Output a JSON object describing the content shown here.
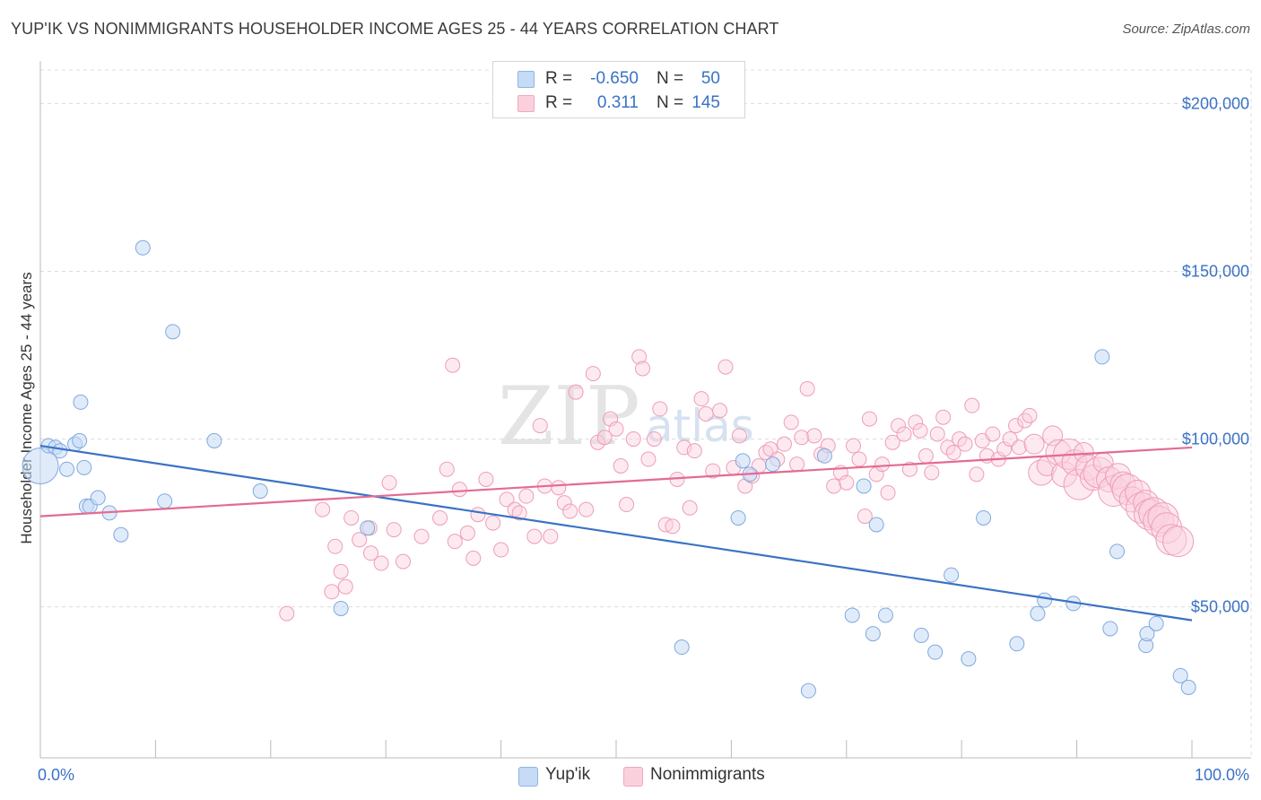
{
  "title": "YUP'IK VS NONIMMIGRANTS HOUSEHOLDER INCOME AGES 25 - 44 YEARS CORRELATION CHART",
  "source": "Source: ZipAtlas.com",
  "watermark": {
    "main": "ZIP",
    "sub": "atlas"
  },
  "legend_top": [
    {
      "r_label": "R =",
      "r_value": "-0.650",
      "n_label": "N =",
      "n_value": "50",
      "color": "#8fb4e3"
    },
    {
      "r_label": "R =",
      "r_value": "0.311",
      "n_label": "N =",
      "n_value": "145",
      "color": "#f2a7bd"
    }
  ],
  "legend_bottom": [
    {
      "label": "Yup'ik",
      "color": "#8fb4e3"
    },
    {
      "label": "Nonimmigrants",
      "color": "#f2a7bd"
    }
  ],
  "chart_data": {
    "type": "scatter",
    "title": "YUP'IK VS NONIMMIGRANTS HOUSEHOLDER INCOME AGES 25 - 44 YEARS CORRELATION CHART",
    "xlabel": "",
    "ylabel": "Householder Income Ages 25 - 44 years",
    "xlim": [
      0,
      100
    ],
    "ylim": [
      5000,
      210000
    ],
    "x_tick_labels": [
      "0.0%",
      "100.0%"
    ],
    "y_ticks": [
      50000,
      100000,
      150000,
      200000
    ],
    "y_tick_labels": [
      "$50,000",
      "$100,000",
      "$150,000",
      "$200,000"
    ],
    "grid": true,
    "legend_position": "top-center",
    "series": [
      {
        "name": "Yup'ik",
        "color": "#8fb4e3",
        "line_color": "#3a72c4",
        "trend": {
          "x": [
            0,
            100
          ],
          "y": [
            98000,
            46000
          ]
        },
        "points": [
          [
            0,
            92000,
            1
          ],
          [
            0.7,
            98000,
            0.4
          ],
          [
            1.3,
            97500,
            0.4
          ],
          [
            1.7,
            96500,
            0.4
          ],
          [
            2.3,
            91000,
            0.4
          ],
          [
            3.0,
            98500,
            0.4
          ],
          [
            3.4,
            99500,
            0.4
          ],
          [
            3.5,
            111000,
            0.4
          ],
          [
            3.8,
            91500,
            0.4
          ],
          [
            4.0,
            80000,
            0.4
          ],
          [
            4.3,
            80000,
            0.4
          ],
          [
            5.0,
            82500,
            0.4
          ],
          [
            6.0,
            78000,
            0.4
          ],
          [
            7.0,
            71500,
            0.4
          ],
          [
            8.9,
            157000,
            0.4
          ],
          [
            10.8,
            81500,
            0.4
          ],
          [
            11.5,
            132000,
            0.4
          ],
          [
            15.1,
            99500,
            0.4
          ],
          [
            19.1,
            84500,
            0.4
          ],
          [
            26.1,
            49500,
            0.4
          ],
          [
            28.4,
            73500,
            0.4
          ],
          [
            55.7,
            38000,
            0.4
          ],
          [
            60.6,
            76500,
            0.4
          ],
          [
            61.0,
            93500,
            0.4
          ],
          [
            61.6,
            89500,
            0.4
          ],
          [
            63.6,
            92500,
            0.4
          ],
          [
            66.7,
            25000,
            0.4
          ],
          [
            68.1,
            95000,
            0.4
          ],
          [
            70.5,
            47500,
            0.4
          ],
          [
            71.5,
            86000,
            0.4
          ],
          [
            72.3,
            42000,
            0.4
          ],
          [
            72.6,
            74500,
            0.4
          ],
          [
            73.4,
            47500,
            0.4
          ],
          [
            76.5,
            41500,
            0.4
          ],
          [
            77.7,
            36500,
            0.4
          ],
          [
            79.1,
            59500,
            0.4
          ],
          [
            80.6,
            34500,
            0.4
          ],
          [
            81.9,
            76500,
            0.4
          ],
          [
            84.8,
            39000,
            0.4
          ],
          [
            86.6,
            48000,
            0.4
          ],
          [
            87.2,
            52000,
            0.4
          ],
          [
            89.7,
            51000,
            0.4
          ],
          [
            92.2,
            124500,
            0.4
          ],
          [
            92.9,
            43500,
            0.4
          ],
          [
            93.5,
            66500,
            0.4
          ],
          [
            96.0,
            38500,
            0.4
          ],
          [
            96.1,
            42000,
            0.4
          ],
          [
            96.9,
            45000,
            0.4
          ],
          [
            99.0,
            29500,
            0.4
          ],
          [
            99.7,
            26000,
            0.4
          ]
        ]
      },
      {
        "name": "Nonimmigrants",
        "color": "#f2a7bd",
        "line_color": "#e36b93",
        "trend": {
          "x": [
            0,
            100
          ],
          "y": [
            77000,
            97500
          ]
        },
        "points": [
          [
            21.4,
            48000,
            0.4
          ],
          [
            24.5,
            79000,
            0.4
          ],
          [
            25.3,
            54500,
            0.4
          ],
          [
            25.6,
            68000,
            0.4
          ],
          [
            26.1,
            60500,
            0.4
          ],
          [
            26.5,
            56000,
            0.4
          ],
          [
            27.0,
            76500,
            0.4
          ],
          [
            27.7,
            70000,
            0.4
          ],
          [
            28.6,
            73500,
            0.4
          ],
          [
            28.7,
            66000,
            0.4
          ],
          [
            29.6,
            63000,
            0.4
          ],
          [
            30.3,
            87000,
            0.4
          ],
          [
            30.7,
            73000,
            0.4
          ],
          [
            31.5,
            63500,
            0.4
          ],
          [
            33.1,
            71000,
            0.4
          ],
          [
            34.7,
            76500,
            0.4
          ],
          [
            35.3,
            91000,
            0.4
          ],
          [
            35.8,
            122000,
            0.4
          ],
          [
            36.0,
            69500,
            0.4
          ],
          [
            36.4,
            85000,
            0.4
          ],
          [
            37.1,
            72000,
            0.4
          ],
          [
            37.6,
            64500,
            0.4
          ],
          [
            38.0,
            77500,
            0.4
          ],
          [
            38.7,
            88000,
            0.4
          ],
          [
            39.3,
            75000,
            0.4
          ],
          [
            40.0,
            67000,
            0.4
          ],
          [
            40.5,
            82000,
            0.4
          ],
          [
            41.2,
            79000,
            0.4
          ],
          [
            41.6,
            78000,
            0.4
          ],
          [
            42.2,
            83000,
            0.4
          ],
          [
            42.9,
            71000,
            0.4
          ],
          [
            43.4,
            104000,
            0.4
          ],
          [
            43.8,
            86000,
            0.4
          ],
          [
            44.3,
            71000,
            0.4
          ],
          [
            45.0,
            85500,
            0.4
          ],
          [
            45.5,
            81000,
            0.4
          ],
          [
            46.0,
            78500,
            0.4
          ],
          [
            46.5,
            114000,
            0.4
          ],
          [
            47.4,
            79000,
            0.4
          ],
          [
            48.0,
            119500,
            0.4
          ],
          [
            48.4,
            99000,
            0.4
          ],
          [
            49.0,
            100500,
            0.4
          ],
          [
            49.5,
            106000,
            0.4
          ],
          [
            50.0,
            103000,
            0.4
          ],
          [
            50.4,
            92000,
            0.4
          ],
          [
            50.9,
            80500,
            0.4
          ],
          [
            51.5,
            100000,
            0.4
          ],
          [
            52.0,
            124500,
            0.4
          ],
          [
            52.3,
            121000,
            0.4
          ],
          [
            52.8,
            94000,
            0.4
          ],
          [
            53.3,
            100000,
            0.4
          ],
          [
            53.8,
            109000,
            0.4
          ],
          [
            54.3,
            74500,
            0.4
          ],
          [
            54.9,
            74000,
            0.4
          ],
          [
            55.3,
            88000,
            0.4
          ],
          [
            55.9,
            97500,
            0.4
          ],
          [
            56.4,
            79500,
            0.4
          ],
          [
            56.8,
            96500,
            0.4
          ],
          [
            57.4,
            112000,
            0.4
          ],
          [
            57.8,
            107500,
            0.4
          ],
          [
            58.4,
            90500,
            0.4
          ],
          [
            59.0,
            108500,
            0.4
          ],
          [
            59.5,
            121500,
            0.4
          ],
          [
            60.2,
            91500,
            0.4
          ],
          [
            60.7,
            101000,
            0.4
          ],
          [
            61.2,
            86000,
            0.4
          ],
          [
            61.8,
            89000,
            0.4
          ],
          [
            62.4,
            92000,
            0.4
          ],
          [
            63.0,
            96000,
            0.4
          ],
          [
            63.4,
            97000,
            0.4
          ],
          [
            64.0,
            94000,
            0.4
          ],
          [
            64.6,
            98500,
            0.4
          ],
          [
            65.2,
            105000,
            0.4
          ],
          [
            65.7,
            92500,
            0.4
          ],
          [
            66.1,
            100500,
            0.4
          ],
          [
            66.6,
            115000,
            0.4
          ],
          [
            67.2,
            101000,
            0.4
          ],
          [
            67.8,
            95500,
            0.4
          ],
          [
            68.4,
            98000,
            0.4
          ],
          [
            68.9,
            86000,
            0.4
          ],
          [
            69.5,
            90000,
            0.4
          ],
          [
            70.0,
            87000,
            0.4
          ],
          [
            70.6,
            98000,
            0.4
          ],
          [
            71.1,
            94000,
            0.4
          ],
          [
            71.6,
            77000,
            0.4
          ],
          [
            72.0,
            106000,
            0.4
          ],
          [
            72.6,
            89500,
            0.4
          ],
          [
            73.1,
            92500,
            0.4
          ],
          [
            73.6,
            84000,
            0.4
          ],
          [
            74.0,
            99000,
            0.4
          ],
          [
            74.5,
            104000,
            0.4
          ],
          [
            75.0,
            101500,
            0.4
          ],
          [
            75.5,
            91000,
            0.4
          ],
          [
            76.0,
            105000,
            0.4
          ],
          [
            76.4,
            102500,
            0.4
          ],
          [
            76.9,
            95000,
            0.4
          ],
          [
            77.4,
            90000,
            0.4
          ],
          [
            77.9,
            101500,
            0.4
          ],
          [
            78.4,
            106500,
            0.4
          ],
          [
            78.8,
            97500,
            0.4
          ],
          [
            79.3,
            96000,
            0.4
          ],
          [
            79.8,
            100000,
            0.4
          ],
          [
            80.3,
            98500,
            0.4
          ],
          [
            80.9,
            110000,
            0.4
          ],
          [
            81.3,
            89500,
            0.4
          ],
          [
            81.8,
            99500,
            0.4
          ],
          [
            82.2,
            95000,
            0.4
          ],
          [
            82.7,
            101500,
            0.4
          ],
          [
            83.2,
            94000,
            0.4
          ],
          [
            83.7,
            97000,
            0.4
          ],
          [
            84.2,
            100000,
            0.4
          ],
          [
            84.7,
            104000,
            0.4
          ],
          [
            85.0,
            97500,
            0.4
          ],
          [
            85.5,
            105500,
            0.4
          ],
          [
            85.9,
            107000,
            0.4
          ],
          [
            86.3,
            98500,
            0.5
          ],
          [
            86.9,
            90000,
            0.6
          ],
          [
            87.4,
            92000,
            0.5
          ],
          [
            87.9,
            101000,
            0.5
          ],
          [
            88.4,
            96000,
            0.6
          ],
          [
            88.9,
            89500,
            0.6
          ],
          [
            89.3,
            95500,
            0.7
          ],
          [
            89.8,
            93000,
            0.6
          ],
          [
            90.2,
            86500,
            0.7
          ],
          [
            90.6,
            96000,
            0.5
          ],
          [
            91.0,
            91500,
            0.6
          ],
          [
            91.4,
            88500,
            0.6
          ],
          [
            91.9,
            90000,
            0.7
          ],
          [
            92.3,
            93000,
            0.5
          ],
          [
            92.8,
            88000,
            0.6
          ],
          [
            93.2,
            84500,
            0.7
          ],
          [
            93.6,
            89000,
            0.6
          ],
          [
            94.0,
            86500,
            0.6
          ],
          [
            94.4,
            85000,
            0.7
          ],
          [
            94.8,
            82000,
            0.6
          ],
          [
            95.3,
            84000,
            0.6
          ],
          [
            95.6,
            79500,
            0.7
          ],
          [
            96.0,
            81000,
            0.6
          ],
          [
            96.3,
            77500,
            0.7
          ],
          [
            96.7,
            78000,
            0.7
          ],
          [
            97.1,
            75500,
            0.7
          ],
          [
            97.5,
            76500,
            0.7
          ],
          [
            97.8,
            73500,
            0.7
          ],
          [
            98.2,
            70000,
            0.7
          ],
          [
            98.8,
            69500,
            0.7
          ]
        ]
      }
    ]
  }
}
